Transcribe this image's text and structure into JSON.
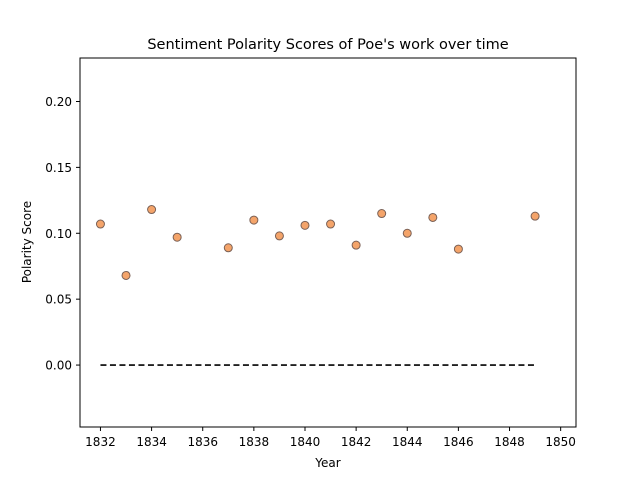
{
  "chart_data": {
    "type": "scatter",
    "title": "Sentiment Polarity Scores of Poe's work over time",
    "xlabel": "Year",
    "ylabel": "Polarity Score",
    "xlim": [
      1831.2,
      1850.6
    ],
    "ylim": [
      -0.047,
      0.233
    ],
    "xticks": [
      1832,
      1834,
      1836,
      1838,
      1840,
      1842,
      1844,
      1846,
      1848,
      1850
    ],
    "yticks": [
      0.0,
      0.05,
      0.1,
      0.15,
      0.2
    ],
    "ytick_labels": [
      "0.00",
      "0.05",
      "0.10",
      "0.15",
      "0.20"
    ],
    "grid": false,
    "marker_color": "#f4a46a",
    "marker_edge_color": "#7a6055",
    "reference_line": {
      "style": "dashed",
      "color": "#000000",
      "y": 0.0,
      "x_start": 1832,
      "x_end": 1849
    },
    "points": [
      {
        "x": 1832,
        "y": 0.107
      },
      {
        "x": 1833,
        "y": 0.068
      },
      {
        "x": 1834,
        "y": 0.118
      },
      {
        "x": 1835,
        "y": 0.097
      },
      {
        "x": 1837,
        "y": 0.089
      },
      {
        "x": 1838,
        "y": 0.11
      },
      {
        "x": 1839,
        "y": 0.098
      },
      {
        "x": 1840,
        "y": 0.106
      },
      {
        "x": 1841,
        "y": 0.107
      },
      {
        "x": 1842,
        "y": 0.091
      },
      {
        "x": 1843,
        "y": 0.115
      },
      {
        "x": 1844,
        "y": 0.1
      },
      {
        "x": 1845,
        "y": 0.112
      },
      {
        "x": 1846,
        "y": 0.088
      },
      {
        "x": 1849,
        "y": 0.113
      }
    ]
  }
}
